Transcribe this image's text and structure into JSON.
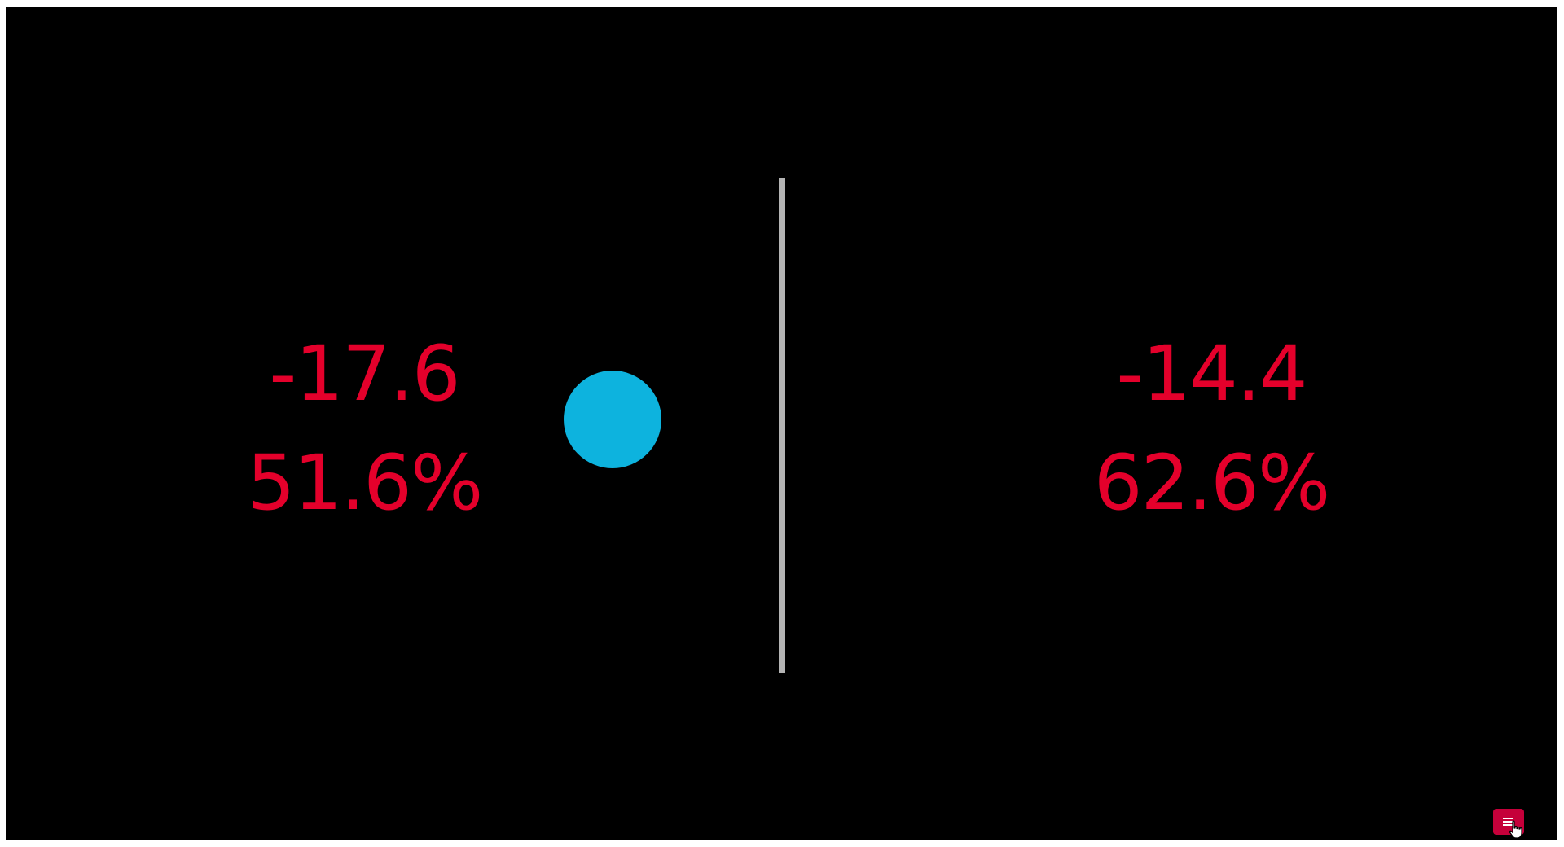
{
  "left": {
    "delta": "-17.6",
    "percent": "51.6%"
  },
  "right": {
    "delta": "-14.4",
    "percent": "62.6%"
  },
  "colors": {
    "background": "#000000",
    "value_text": "#e4002b",
    "indicator": "#0db3de",
    "divider": "#b4b4b4",
    "menu_button": "#c5003a"
  },
  "icons": {
    "menu": "hamburger-menu-icon",
    "cursor": "hand-pointer-cursor"
  }
}
